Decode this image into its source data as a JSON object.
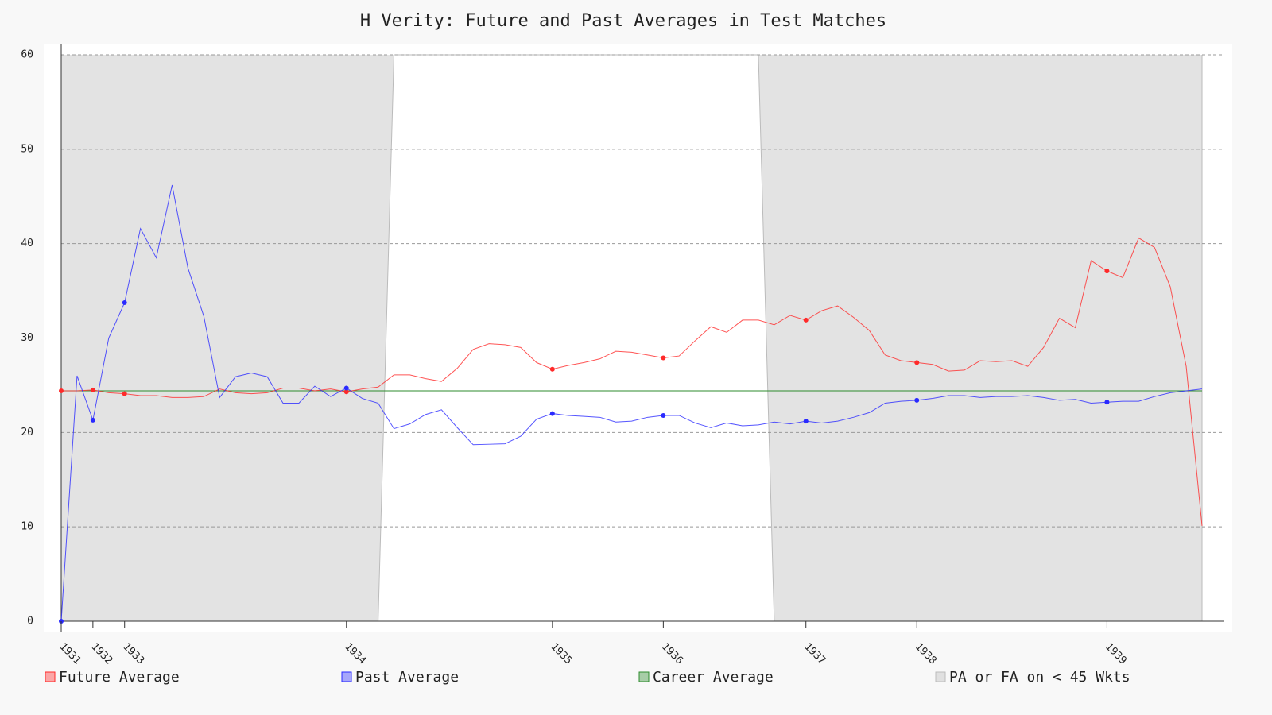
{
  "chart_data": {
    "type": "line",
    "title": "H Verity: Future and Past Averages in Test Matches",
    "categories": [
      "1931",
      null,
      "1932",
      null,
      "1933",
      null,
      null,
      null,
      null,
      null,
      null,
      null,
      null,
      null,
      null,
      null,
      null,
      null,
      "1934",
      null,
      null,
      null,
      null,
      null,
      null,
      null,
      null,
      null,
      null,
      null,
      null,
      "1935",
      null,
      null,
      null,
      null,
      null,
      null,
      "1936",
      null,
      null,
      null,
      null,
      null,
      null,
      null,
      null,
      "1937",
      null,
      null,
      null,
      null,
      null,
      null,
      "1938",
      null,
      null,
      null,
      null,
      null,
      null,
      null,
      null,
      null,
      null,
      null,
      "1939",
      null,
      null,
      null,
      null,
      null,
      null
    ],
    "series": [
      {
        "name": "Future Average",
        "color": "#ff2a2a",
        "values": [
          24.4,
          24.4,
          24.5,
          24.2,
          24.1,
          23.9,
          23.9,
          23.7,
          23.7,
          23.8,
          24.6,
          24.2,
          24.1,
          24.2,
          24.7,
          24.7,
          24.4,
          24.6,
          24.3,
          24.6,
          24.8,
          26.1,
          26.1,
          25.7,
          25.4,
          26.8,
          28.8,
          29.4,
          29.3,
          29.0,
          27.4,
          26.7,
          27.1,
          27.4,
          27.8,
          28.6,
          28.5,
          28.2,
          27.9,
          28.1,
          29.7,
          31.2,
          30.6,
          31.9,
          31.9,
          31.4,
          32.4,
          31.9,
          32.9,
          33.4,
          32.2,
          30.8,
          28.2,
          27.6,
          27.4,
          27.2,
          26.5,
          26.6,
          27.6,
          27.5,
          27.6,
          27.0,
          29.0,
          32.1,
          31.1,
          38.2,
          37.1,
          36.4,
          40.6,
          39.6,
          35.4,
          27.0,
          10.1
        ]
      },
      {
        "name": "Past Average",
        "color": "#2a2aff",
        "values": [
          0,
          26.0,
          21.3,
          30.0,
          33.75,
          41.6,
          38.5,
          46.2,
          37.4,
          32.3,
          23.7,
          25.9,
          26.3,
          25.9,
          23.1,
          23.1,
          24.9,
          23.8,
          24.7,
          23.6,
          23.1,
          20.4,
          20.9,
          21.9,
          22.4,
          20.5,
          18.7,
          18.75,
          18.8,
          19.6,
          21.4,
          22.0,
          21.8,
          21.7,
          21.6,
          21.1,
          21.2,
          21.6,
          21.8,
          21.8,
          21.0,
          20.5,
          21.0,
          20.7,
          20.8,
          21.1,
          20.9,
          21.2,
          21.0,
          21.2,
          21.6,
          22.1,
          23.1,
          23.3,
          23.4,
          23.6,
          23.9,
          23.9,
          23.7,
          23.8,
          23.8,
          23.9,
          23.7,
          23.4,
          23.5,
          23.1,
          23.2,
          23.3,
          23.3,
          23.8,
          24.2,
          24.4,
          24.6
        ]
      }
    ],
    "reference_lines": [
      {
        "name": "Career Average",
        "color": "#2e8b2e",
        "value": 24.4
      }
    ],
    "shade": {
      "name": "PA or FA on < 45 Wkts",
      "color": "#e3e3e3",
      "values": [
        0,
        0,
        0,
        0,
        0,
        0,
        0,
        0,
        0,
        0,
        0,
        0,
        0,
        0,
        0,
        0,
        0,
        0,
        0,
        0,
        0,
        60,
        60,
        60,
        60,
        60,
        60,
        60,
        60,
        60,
        60,
        60,
        60,
        60,
        60,
        60,
        60,
        60,
        60,
        60,
        60,
        60,
        60,
        60,
        60,
        0,
        0,
        0,
        0,
        0,
        0,
        0,
        0,
        0,
        0,
        0,
        0,
        0,
        0,
        0,
        0,
        0,
        0,
        0,
        0,
        0,
        0,
        0,
        0,
        0,
        0,
        0,
        0
      ]
    },
    "ylim": [
      0,
      60
    ],
    "yticks": [
      0,
      10,
      20,
      30,
      40,
      50,
      60
    ],
    "grid": true
  }
}
